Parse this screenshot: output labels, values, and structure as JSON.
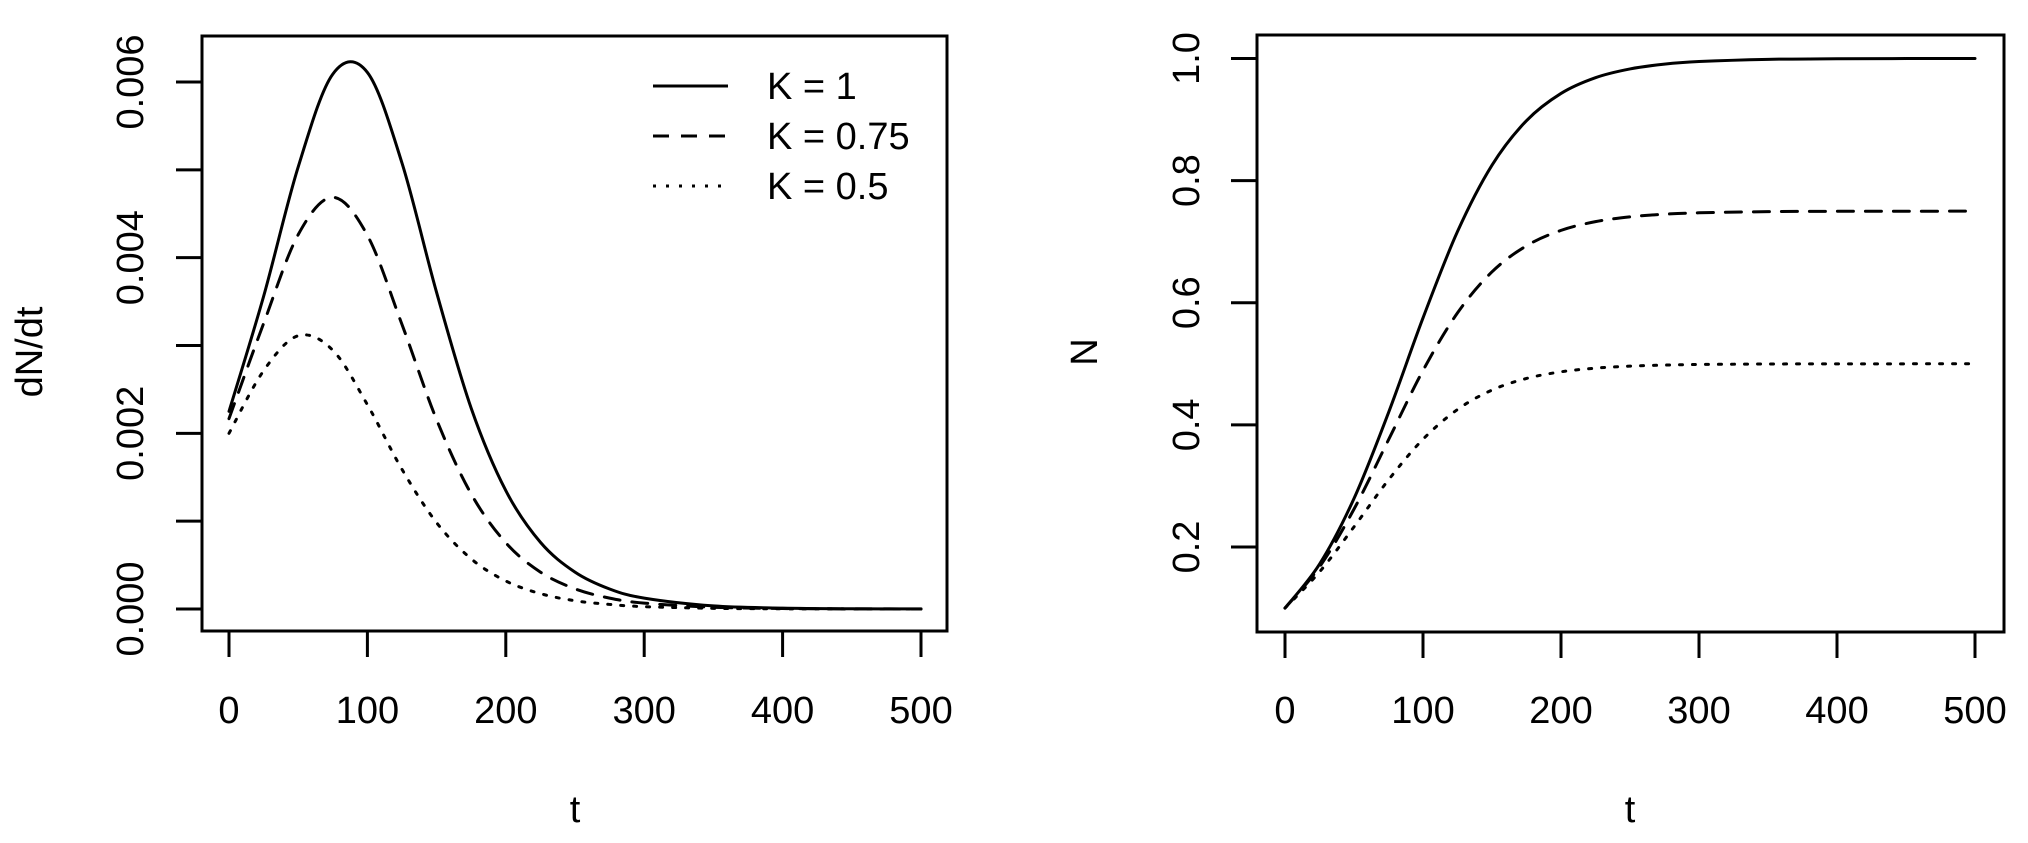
{
  "chart_data": [
    {
      "type": "line",
      "xlabel": "t",
      "ylabel": "dN/dt",
      "xlim": [
        0,
        500
      ],
      "ylim": [
        0,
        0.006
      ],
      "x_ticks": [
        "0",
        "100",
        "200",
        "300",
        "400",
        "500"
      ],
      "y_ticks": [
        "0.000",
        "0.002",
        "0.004",
        "0.006"
      ],
      "y_minor_ticks": [
        0.001,
        0.003,
        0.005
      ],
      "grid": false,
      "legend": {
        "placement": "top-right",
        "entries": [
          "K = 1",
          "K = 0.75",
          "K = 0.5"
        ]
      },
      "x": [
        0,
        25,
        50,
        75,
        100,
        125,
        150,
        175,
        200,
        225,
        250,
        275,
        300,
        350,
        400,
        450,
        500
      ],
      "series": [
        {
          "name": "K = 1",
          "line_style": "solid",
          "values": [
            0.00225,
            0.003559,
            0.005033,
            0.00609,
            0.006109,
            0.005077,
            0.003604,
            0.002286,
            0.001348,
            0.00076,
            0.00042,
            0.000228,
            0.000124,
            3.5e-05,
            1e-05,
            2.5e-06,
            8e-07
          ]
        },
        {
          "name": "K = 0.75",
          "line_style": "dashed",
          "values": [
            0.002167,
            0.003251,
            0.004262,
            0.004687,
            0.004254,
            0.003239,
            0.002155,
            0.00131,
            0.000754,
            0.00042,
            0.00023,
            0.000124,
            6.7e-05,
            2e-05,
            5.6e-06,
            1.6e-06,
            5e-07
          ]
        },
        {
          "name": "K = 0.5",
          "line_style": "dotted",
          "values": [
            0.002,
            0.002713,
            0.003111,
            0.002946,
            0.002326,
            0.00159,
            0.000983,
            0.000571,
            0.000319,
            0.000175,
            9.4e-05,
            5.2e-05,
            2.7e-05,
            7.8e-06,
            2.3e-06,
            6e-07,
            2e-07
          ]
        }
      ]
    },
    {
      "type": "line",
      "xlabel": "t",
      "ylabel": "N",
      "xlim": [
        0,
        500
      ],
      "ylim": [
        0.1,
        1.0
      ],
      "x_ticks": [
        "0",
        "100",
        "200",
        "300",
        "400",
        "500"
      ],
      "y_ticks": [
        "0.2",
        "0.4",
        "0.6",
        "0.8",
        "1.0"
      ],
      "grid": false,
      "x": [
        0,
        25,
        50,
        75,
        100,
        125,
        150,
        175,
        200,
        225,
        250,
        275,
        300,
        350,
        400,
        450,
        500
      ],
      "series": [
        {
          "name": "K = 1",
          "line_style": "solid",
          "values": [
            0.1,
            0.1719,
            0.2794,
            0.42,
            0.5751,
            0.7166,
            0.8253,
            0.8982,
            0.9428,
            0.9686,
            0.9829,
            0.9908,
            0.995,
            0.9986,
            0.9996,
            0.9999,
            1.0
          ]
        },
        {
          "name": "K = 0.75",
          "line_style": "dashed",
          "values": [
            0.1,
            0.1674,
            0.262,
            0.3755,
            0.4891,
            0.5834,
            0.6506,
            0.6933,
            0.7185,
            0.7328,
            0.7407,
            0.745,
            0.7473,
            0.7492,
            0.7498,
            0.7499,
            0.75
          ]
        },
        {
          "name": "K = 0.5",
          "line_style": "dotted",
          "values": [
            0.1,
            0.1592,
            0.233,
            0.3099,
            0.3764,
            0.4252,
            0.457,
            0.476,
            0.4869,
            0.4929,
            0.4962,
            0.4979,
            0.4989,
            0.4997,
            0.4999,
            0.5,
            0.5
          ]
        }
      ]
    }
  ]
}
